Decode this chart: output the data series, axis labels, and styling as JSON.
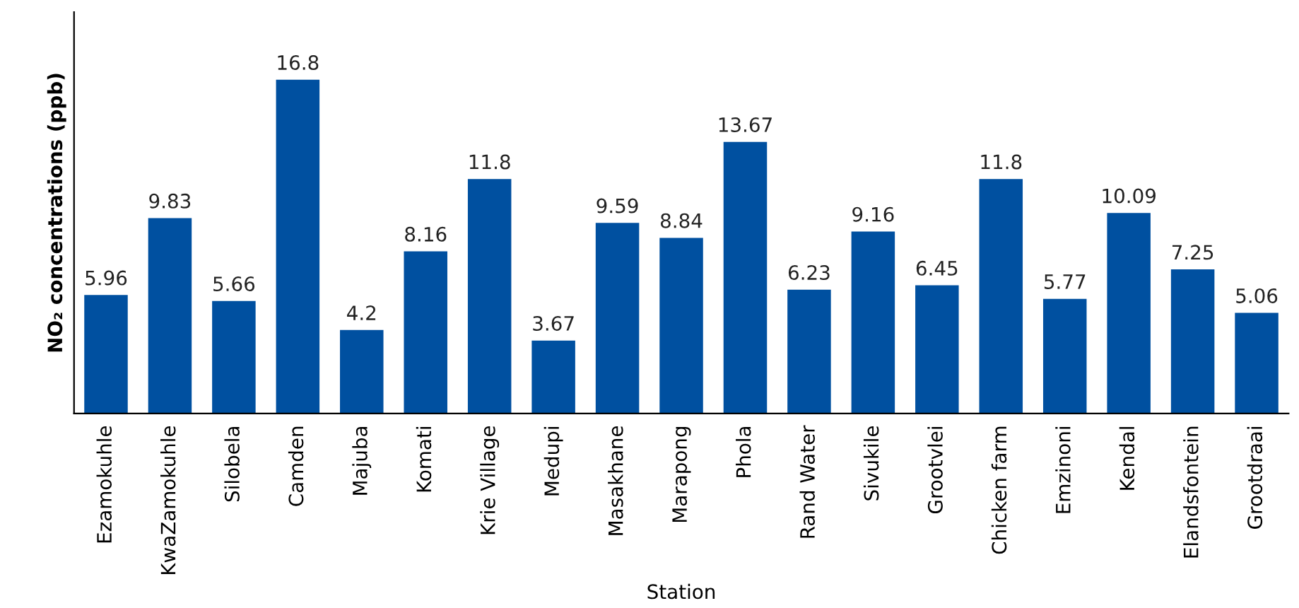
{
  "chart_data": {
    "type": "bar",
    "xlabel": "Station",
    "ylabel": "NO₂ concentrations (ppb)",
    "categories": [
      "Ezamokuhle",
      "KwaZamokuhle",
      "Silobela",
      "Camden",
      "Majuba",
      "Komati",
      "Krie Village",
      "Medupi",
      "Masakhane",
      "Marapong",
      "Phola",
      "Rand Water",
      "Sivukile",
      "Grootvlei",
      "Chicken farm",
      "Emzinoni",
      "Kendal",
      "Elandsfontein",
      "Grootdraai"
    ],
    "values": [
      5.96,
      9.83,
      5.66,
      16.8,
      4.2,
      8.16,
      11.8,
      3.67,
      9.59,
      8.84,
      13.67,
      6.23,
      9.16,
      6.45,
      11.8,
      5.77,
      10.09,
      7.25,
      5.06
    ],
    "color": "#0050a0",
    "ylim": [
      0,
      20.2
    ],
    "data_labels": true,
    "grid": false,
    "legend": false
  }
}
